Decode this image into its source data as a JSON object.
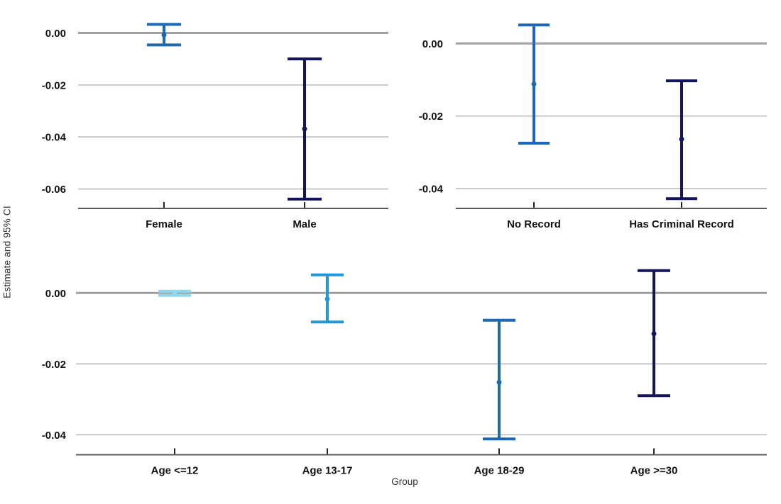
{
  "figure": {
    "y_axis_title": "Estimate and 95% CI",
    "x_axis_title": "Group"
  },
  "palette": {
    "light_sky": "#8ed9ec",
    "cyan": "#1f9ad6",
    "medium_blue": "#1d68b0",
    "navy": "#14145c",
    "grid_line": "#c9c9c9",
    "zero_line": "#a0a0a0",
    "axis_line": "#595959",
    "tick_mark": "#262626",
    "label_text": "#111111"
  },
  "chart_data": {
    "type": "errorbar",
    "title": "",
    "ylabel": "Estimate and 95% CI",
    "xlabel": "Group",
    "grid": true,
    "legend": false,
    "panels": [
      {
        "name": "gender",
        "position": "top-left",
        "ylim": [
          -0.0675,
          0.0075
        ],
        "yticks": [
          {
            "label": "0.00",
            "value": 0
          },
          {
            "label": "-0.02",
            "value": -0.02
          },
          {
            "label": "-0.04",
            "value": -0.04
          },
          {
            "label": "-0.06",
            "value": -0.06
          }
        ],
        "categories": [
          "Female",
          "Male"
        ],
        "series": [
          {
            "category": "Female",
            "estimate": -0.0008,
            "ci_low": -0.0046,
            "ci_high": 0.0033,
            "color_key": "medium_blue"
          },
          {
            "category": "Male",
            "estimate": -0.0369,
            "ci_low": -0.0639,
            "ci_high": -0.01,
            "color_key": "navy"
          }
        ]
      },
      {
        "name": "criminal-record",
        "position": "top-right",
        "ylim": [
          -0.0455,
          0.008
        ],
        "yticks": [
          {
            "label": "0.00",
            "value": 0
          },
          {
            "label": "-0.02",
            "value": -0.02
          },
          {
            "label": "-0.04",
            "value": -0.04
          }
        ],
        "categories": [
          "No Record",
          "Has Criminal Record"
        ],
        "series": [
          {
            "category": "No Record",
            "estimate": -0.0112,
            "ci_low": -0.0275,
            "ci_high": 0.0051,
            "color_key": "medium_blue"
          },
          {
            "category": "Has Criminal Record",
            "estimate": -0.0264,
            "ci_low": -0.0428,
            "ci_high": -0.0103,
            "color_key": "navy"
          }
        ]
      },
      {
        "name": "age",
        "position": "bottom",
        "ylim": [
          -0.0457,
          0.0071
        ],
        "yticks": [
          {
            "label": "0.00",
            "value": 0
          },
          {
            "label": "-0.02",
            "value": -0.02
          },
          {
            "label": "-0.04",
            "value": -0.04
          }
        ],
        "categories": [
          "Age <=12",
          "Age 13-17",
          "Age 18-29",
          "Age >=30"
        ],
        "series": [
          {
            "category": "Age <=12",
            "estimate": -0.0001,
            "ci_low": -0.0007,
            "ci_high": 0.0005,
            "color_key": "light_sky"
          },
          {
            "category": "Age 13-17",
            "estimate": -0.0017,
            "ci_low": -0.0082,
            "ci_high": 0.0051,
            "color_key": "cyan"
          },
          {
            "category": "Age 18-29",
            "estimate": -0.0252,
            "ci_low": -0.0412,
            "ci_high": -0.0077,
            "color_key": "medium_blue"
          },
          {
            "category": "Age >=30",
            "estimate": -0.0115,
            "ci_low": -0.029,
            "ci_high": 0.0063,
            "color_key": "navy"
          }
        ]
      }
    ]
  }
}
